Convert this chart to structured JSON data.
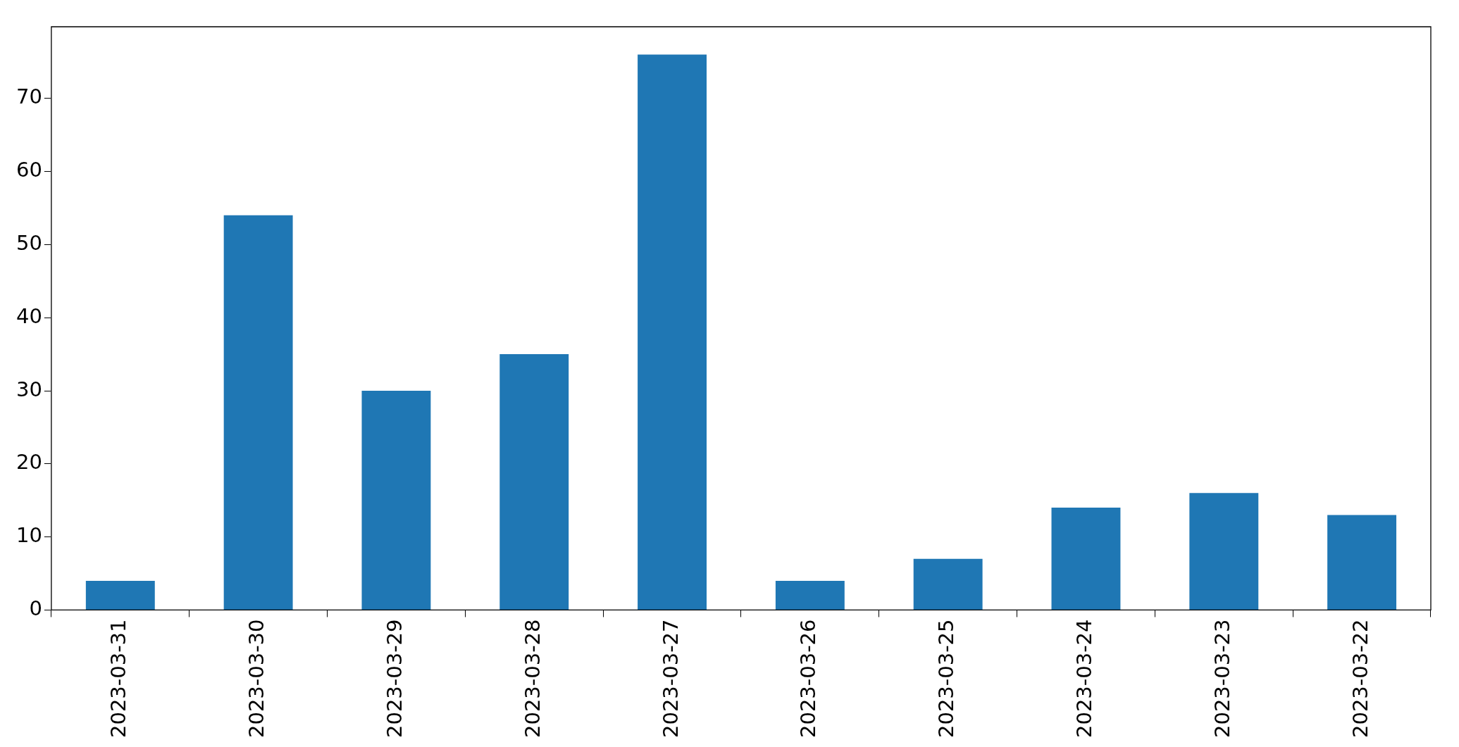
{
  "chart_data": {
    "type": "bar",
    "categories": [
      "2023-03-31",
      "2023-03-30",
      "2023-03-29",
      "2023-03-28",
      "2023-03-27",
      "2023-03-26",
      "2023-03-25",
      "2023-03-24",
      "2023-03-23",
      "2023-03-22"
    ],
    "values": [
      4,
      54,
      30,
      35,
      76,
      4,
      7,
      14,
      16,
      13
    ],
    "color": "#1f77b4",
    "ylim": [
      0,
      79.8
    ],
    "yticks": [
      0,
      10,
      20,
      30,
      40,
      50,
      60,
      70
    ],
    "grid": false,
    "legend": false
  }
}
